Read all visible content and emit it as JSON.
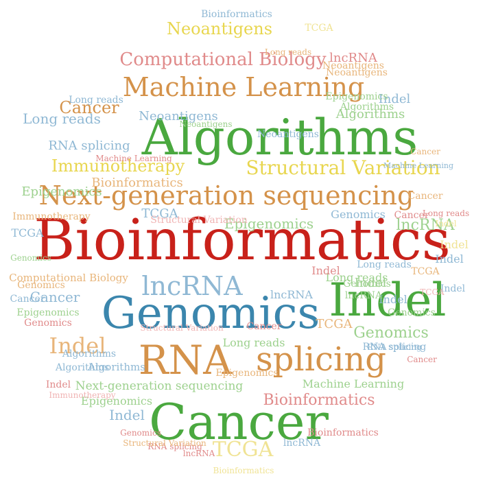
{
  "cloud": {
    "palette": {
      "red": "#c8211a",
      "green": "#4aa83f",
      "blue": "#3b86ad",
      "orange": "#d4924a",
      "yellow": "#e8d64f",
      "pink": "#e08a8a",
      "lightblue": "#8fb8d4",
      "lightgreen": "#9dd18e",
      "lightorange": "#e8b57a",
      "paleyellow": "#f0e394",
      "palepink": "#f0b3b3"
    },
    "words": [
      {
        "text": "Bioinformatics",
        "color": "red"
      },
      {
        "text": "Algorithms",
        "color": "green"
      },
      {
        "text": "Cancer",
        "color": "green"
      },
      {
        "text": "Genomics",
        "color": "blue"
      },
      {
        "text": "Indel",
        "color": "green"
      },
      {
        "text": "RNA",
        "color": "orange"
      },
      {
        "text": "splicing",
        "color": "orange"
      },
      {
        "text": "Next-generation sequencing",
        "color": "orange"
      },
      {
        "text": "Machine Learning",
        "color": "orange"
      },
      {
        "text": "lncRNA",
        "color": "lightblue"
      },
      {
        "text": "Structural Variation",
        "color": "yellow"
      },
      {
        "text": "Computational Biology",
        "color": "pink"
      },
      {
        "text": "Neoantigens",
        "color": "yellow"
      },
      {
        "text": "Immunotherapy",
        "color": "yellow"
      },
      {
        "text": "TCGA",
        "color": "paleyellow"
      },
      {
        "text": "Bioinformatics",
        "color": "pink"
      },
      {
        "text": "Genomics",
        "color": "lightgreen"
      },
      {
        "text": "Epigenomics",
        "color": "lightgreen"
      },
      {
        "text": "Long reads",
        "color": "lightblue"
      },
      {
        "text": "Cancer",
        "color": "orange"
      },
      {
        "text": "Indel",
        "color": "lightorange"
      },
      {
        "text": "Indel",
        "color": "lightgreen"
      },
      {
        "text": "Cancer",
        "color": "lightblue"
      },
      {
        "text": "Algorithms",
        "color": "lightgreen"
      },
      {
        "text": "Next-generation sequencing",
        "color": "lightgreen"
      },
      {
        "text": "Machine Learning",
        "color": "lightgreen"
      },
      {
        "text": "Neoantigens",
        "color": "lightblue"
      },
      {
        "text": "lncRNA",
        "color": "lightgreen"
      },
      {
        "text": "TCGA",
        "color": "lightblue"
      },
      {
        "text": "Genomics",
        "color": "lightblue"
      },
      {
        "text": "Epigenomics",
        "color": "lightgreen"
      },
      {
        "text": "Long reads",
        "color": "lightgreen"
      },
      {
        "text": "Indel",
        "color": "lightblue"
      },
      {
        "text": "RNA splicing",
        "color": "lightblue"
      },
      {
        "text": "Structural Variation",
        "color": "palepink"
      },
      {
        "text": "Immunotherapy",
        "color": "lightorange"
      },
      {
        "text": "Bioinformatics",
        "color": "lightorange"
      },
      {
        "text": "Neoantigens",
        "color": "lightgreen"
      },
      {
        "text": "lncRNA",
        "color": "pink"
      },
      {
        "text": "Computational Biology",
        "color": "lightorange"
      },
      {
        "text": "Algorithms",
        "color": "lightblue"
      },
      {
        "text": "Genomics",
        "color": "pink"
      },
      {
        "text": "Epigenomics",
        "color": "lightgreen"
      },
      {
        "text": "Indel",
        "color": "lightblue"
      },
      {
        "text": "TCGA",
        "color": "lightblue"
      },
      {
        "text": "Cancer",
        "color": "pink"
      },
      {
        "text": "TCGA",
        "color": "paleyellow"
      },
      {
        "text": "Long reads",
        "color": "lightgreen"
      },
      {
        "text": "lncRNA",
        "color": "lightblue"
      },
      {
        "text": "Indel",
        "color": "pink"
      },
      {
        "text": "Cancer",
        "color": "pink"
      },
      {
        "text": "Genomics",
        "color": "lightgreen"
      },
      {
        "text": "Indel",
        "color": "lightblue"
      },
      {
        "text": "Indel",
        "color": "paleyellow"
      },
      {
        "text": "Indel",
        "color": "lightblue"
      },
      {
        "text": "Bioinformatics",
        "color": "lightblue"
      },
      {
        "text": "TCGA",
        "color": "lightorange"
      },
      {
        "text": "Structural Variation",
        "color": "palepink"
      },
      {
        "text": "RNA splicing",
        "color": "lightblue"
      },
      {
        "text": "Machine Learning",
        "color": "lightblue"
      },
      {
        "text": "Long reads",
        "color": "pink"
      },
      {
        "text": "Algorithms",
        "color": "lightblue"
      },
      {
        "text": "Cancer",
        "color": "lightblue"
      },
      {
        "text": "Epigenomics",
        "color": "lightgreen"
      },
      {
        "text": "Genomics",
        "color": "pink"
      },
      {
        "text": "Indel",
        "color": "lightblue"
      },
      {
        "text": "RNA splicing",
        "color": "lightblue"
      },
      {
        "text": "lncRNA",
        "color": "pink"
      },
      {
        "text": "Long reads",
        "color": "lightorange"
      },
      {
        "text": "Immunotherapy",
        "color": "palepink"
      },
      {
        "text": "Indel",
        "color": "paleyellow"
      },
      {
        "text": "Bioinformatics",
        "color": "paleyellow"
      },
      {
        "text": "Algorithms",
        "color": "lightblue"
      },
      {
        "text": "Neoantigens",
        "color": "lightorange"
      },
      {
        "text": "TCGA",
        "color": "lightorange"
      },
      {
        "text": "Genomics",
        "color": "lightorange"
      },
      {
        "text": "lncRNA",
        "color": "lightgreen"
      },
      {
        "text": "Long reads",
        "color": "lightblue"
      },
      {
        "text": "Neoantigens",
        "color": "lightorange"
      },
      {
        "text": "Indel",
        "color": "pink"
      },
      {
        "text": "TCGA",
        "color": "palepink"
      },
      {
        "text": "Cancer",
        "color": "lightorange"
      },
      {
        "text": "Genomics",
        "color": "lightgreen"
      },
      {
        "text": "RNA splicing",
        "color": "pink"
      },
      {
        "text": "Epigenomics",
        "color": "lightorange"
      },
      {
        "text": "Bioinformatics",
        "color": "pink"
      },
      {
        "text": "Machine Learning",
        "color": "pink"
      },
      {
        "text": "lncRNA",
        "color": "lightblue"
      },
      {
        "text": "Epigenomics",
        "color": "lightgreen"
      },
      {
        "text": "Cancer",
        "color": "pink"
      },
      {
        "text": "Long reads",
        "color": "lightblue"
      },
      {
        "text": "Structural Variation",
        "color": "lightorange"
      },
      {
        "text": "Algorithms",
        "color": "lightgreen"
      },
      {
        "text": "Neoantigens",
        "color": "lightblue"
      },
      {
        "text": "Genomics",
        "color": "lightgreen"
      },
      {
        "text": "Cancer",
        "color": "lightorange"
      }
    ]
  }
}
